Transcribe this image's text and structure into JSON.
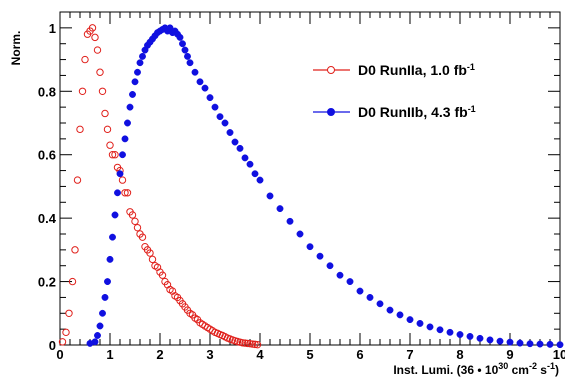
{
  "chart_data": {
    "type": "scatter",
    "title": "",
    "xlabel": "Inst. Lumi. (36 • 10^30 cm^-2 s^-1)",
    "ylabel": "Norm.",
    "xlim": [
      0,
      10
    ],
    "ylim": [
      0,
      1.05
    ],
    "xticks": [
      "0",
      "1",
      "2",
      "3",
      "4",
      "5",
      "6",
      "7",
      "8",
      "9",
      "10"
    ],
    "yticks": [
      "0",
      "0.2",
      "0.4",
      "0.6",
      "0.8",
      "1"
    ],
    "legend_position": "top-right",
    "series": [
      {
        "name": "D0 RunIIa, 1.0 fb^-1",
        "marker": "open-circle",
        "color": "#e0201b",
        "x": [
          0.05,
          0.12,
          0.18,
          0.25,
          0.3,
          0.35,
          0.4,
          0.45,
          0.5,
          0.55,
          0.6,
          0.65,
          0.7,
          0.75,
          0.8,
          0.85,
          0.9,
          0.95,
          1.0,
          1.05,
          1.1,
          1.15,
          1.2,
          1.25,
          1.3,
          1.35,
          1.4,
          1.45,
          1.5,
          1.55,
          1.6,
          1.65,
          1.7,
          1.75,
          1.8,
          1.85,
          1.9,
          1.95,
          2.0,
          2.05,
          2.1,
          2.15,
          2.2,
          2.25,
          2.3,
          2.35,
          2.4,
          2.45,
          2.5,
          2.55,
          2.6,
          2.65,
          2.7,
          2.75,
          2.8,
          2.85,
          2.9,
          2.95,
          3.0,
          3.05,
          3.1,
          3.15,
          3.2,
          3.25,
          3.3,
          3.35,
          3.4,
          3.45,
          3.5,
          3.55,
          3.6,
          3.65,
          3.7,
          3.75,
          3.8,
          3.85,
          3.9,
          3.95
        ],
        "values": [
          0.01,
          0.04,
          0.1,
          0.2,
          0.3,
          0.52,
          0.68,
          0.8,
          0.9,
          0.98,
          0.99,
          1.0,
          0.97,
          0.93,
          0.86,
          0.8,
          0.73,
          0.68,
          0.63,
          0.6,
          0.6,
          0.56,
          0.55,
          0.52,
          0.48,
          0.48,
          0.42,
          0.41,
          0.39,
          0.37,
          0.35,
          0.34,
          0.31,
          0.3,
          0.29,
          0.27,
          0.25,
          0.245,
          0.23,
          0.22,
          0.2,
          0.19,
          0.175,
          0.17,
          0.155,
          0.15,
          0.14,
          0.13,
          0.12,
          0.11,
          0.1,
          0.095,
          0.085,
          0.08,
          0.07,
          0.065,
          0.06,
          0.055,
          0.05,
          0.045,
          0.04,
          0.037,
          0.033,
          0.03,
          0.026,
          0.022,
          0.019,
          0.016,
          0.013,
          0.011,
          0.009,
          0.007,
          0.006,
          0.005,
          0.004,
          0.003,
          0.002,
          0.001
        ]
      },
      {
        "name": "D0 RunIIb, 4.3 fb^-1",
        "marker": "filled-circle",
        "color": "#1010e0",
        "x": [
          0.6,
          0.7,
          0.75,
          0.8,
          0.85,
          0.9,
          0.95,
          1.0,
          1.05,
          1.1,
          1.15,
          1.2,
          1.25,
          1.3,
          1.35,
          1.4,
          1.45,
          1.5,
          1.55,
          1.6,
          1.65,
          1.7,
          1.75,
          1.8,
          1.85,
          1.9,
          1.95,
          2.0,
          2.05,
          2.1,
          2.15,
          2.2,
          2.25,
          2.3,
          2.35,
          2.4,
          2.45,
          2.5,
          2.55,
          2.6,
          2.7,
          2.8,
          2.9,
          3.0,
          3.1,
          3.2,
          3.3,
          3.4,
          3.5,
          3.6,
          3.7,
          3.8,
          3.9,
          4.0,
          4.2,
          4.4,
          4.6,
          4.8,
          5.0,
          5.2,
          5.4,
          5.6,
          5.8,
          6.0,
          6.2,
          6.4,
          6.6,
          6.8,
          7.0,
          7.2,
          7.4,
          7.6,
          7.8,
          8.0,
          8.2,
          8.4,
          8.6,
          8.8,
          9.0,
          9.2,
          9.4,
          9.6,
          9.8,
          10.0
        ],
        "values": [
          0.005,
          0.01,
          0.03,
          0.06,
          0.1,
          0.15,
          0.2,
          0.27,
          0.34,
          0.41,
          0.48,
          0.54,
          0.6,
          0.65,
          0.7,
          0.75,
          0.79,
          0.83,
          0.86,
          0.89,
          0.91,
          0.93,
          0.945,
          0.955,
          0.965,
          0.975,
          0.985,
          0.99,
          0.995,
          1.0,
          0.99,
          1.0,
          0.985,
          0.99,
          0.98,
          0.97,
          0.95,
          0.93,
          0.91,
          0.89,
          0.86,
          0.83,
          0.81,
          0.78,
          0.75,
          0.72,
          0.7,
          0.67,
          0.64,
          0.62,
          0.59,
          0.57,
          0.54,
          0.52,
          0.47,
          0.43,
          0.39,
          0.35,
          0.31,
          0.28,
          0.25,
          0.22,
          0.2,
          0.17,
          0.15,
          0.13,
          0.11,
          0.095,
          0.08,
          0.068,
          0.057,
          0.048,
          0.04,
          0.033,
          0.027,
          0.021,
          0.016,
          0.012,
          0.009,
          0.006,
          0.004,
          0.003,
          0.002,
          0.001
        ]
      }
    ]
  }
}
